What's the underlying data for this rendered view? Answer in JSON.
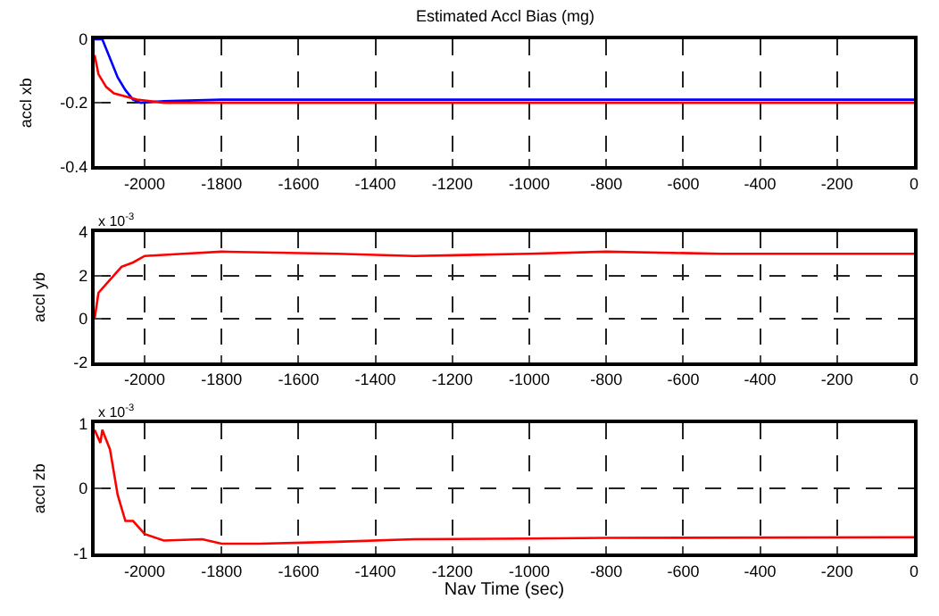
{
  "chart_data": [
    {
      "type": "line",
      "title": "Estimated Accl Bias (mg)",
      "ylabel": "accl xb",
      "xlim": [
        -2130,
        0
      ],
      "xticks": [
        -2000,
        -1800,
        -1600,
        -1400,
        -1200,
        -1000,
        -800,
        -600,
        -400,
        -200,
        0
      ],
      "ylim": [
        -0.4,
        0
      ],
      "yticks": [
        -0.4,
        -0.2,
        0
      ],
      "grid": true,
      "line_style": "solid",
      "series": [
        {
          "color": "#0000ff",
          "x": [
            -2130,
            -2110,
            -2090,
            -2070,
            -2050,
            -2030,
            -2010,
            -1950,
            -1800,
            -1500,
            -1200,
            -900,
            -600,
            -300,
            0
          ],
          "values": [
            0,
            0,
            -0.06,
            -0.12,
            -0.16,
            -0.19,
            -0.2,
            -0.195,
            -0.19,
            -0.19,
            -0.19,
            -0.19,
            -0.19,
            -0.19,
            -0.19
          ]
        },
        {
          "color": "#ff0000",
          "x": [
            -2130,
            -2120,
            -2100,
            -2080,
            -2050,
            -2020,
            -1950,
            -1800,
            -1500,
            -1200,
            -900,
            -600,
            -300,
            0
          ],
          "values": [
            -0.05,
            -0.11,
            -0.15,
            -0.17,
            -0.18,
            -0.19,
            -0.2,
            -0.2,
            -0.2,
            -0.2,
            -0.2,
            -0.2,
            -0.2,
            -0.2
          ]
        }
      ]
    },
    {
      "type": "line",
      "ylabel": "accl yb",
      "annotations": [
        "x 10$^{-3}$"
      ],
      "xlim": [
        -2130,
        0
      ],
      "xticks": [
        -2000,
        -1800,
        -1600,
        -1400,
        -1200,
        -1000,
        -800,
        -600,
        -400,
        -200,
        0
      ],
      "ylim": [
        -2,
        4
      ],
      "yticks": [
        -2,
        0,
        2,
        4
      ],
      "grid": true,
      "line_style": "solid",
      "series": [
        {
          "color": "#ff0000",
          "x": [
            -2130,
            -2120,
            -2090,
            -2060,
            -2030,
            -2000,
            -1900,
            -1800,
            -1500,
            -1300,
            -1000,
            -800,
            -500,
            -200,
            0
          ],
          "values": [
            0,
            1.2,
            1.8,
            2.4,
            2.6,
            2.9,
            3.0,
            3.1,
            3.0,
            2.9,
            3.0,
            3.1,
            3.0,
            3.0,
            3.0
          ]
        }
      ]
    },
    {
      "type": "line",
      "ylabel": "accl zb",
      "xlabel": "Nav Time (sec)",
      "annotations": [
        "x 10$^{-3}$"
      ],
      "xlim": [
        -2130,
        0
      ],
      "xticks": [
        -2000,
        -1800,
        -1600,
        -1400,
        -1200,
        -1000,
        -800,
        -600,
        -400,
        -200,
        0
      ],
      "ylim": [
        -1,
        1
      ],
      "yticks": [
        -1,
        0,
        1
      ],
      "grid": true,
      "line_style": "solid",
      "series": [
        {
          "color": "#ff0000",
          "x": [
            -2130,
            -2115,
            -2110,
            -2090,
            -2070,
            -2050,
            -2030,
            -2000,
            -1950,
            -1850,
            -1800,
            -1700,
            -1500,
            -1300,
            -1000,
            -800,
            0
          ],
          "values": [
            0.9,
            0.7,
            0.9,
            0.6,
            -0.1,
            -0.5,
            -0.5,
            -0.7,
            -0.8,
            -0.78,
            -0.85,
            -0.85,
            -0.82,
            -0.78,
            -0.77,
            -0.76,
            -0.75
          ]
        }
      ]
    }
  ]
}
